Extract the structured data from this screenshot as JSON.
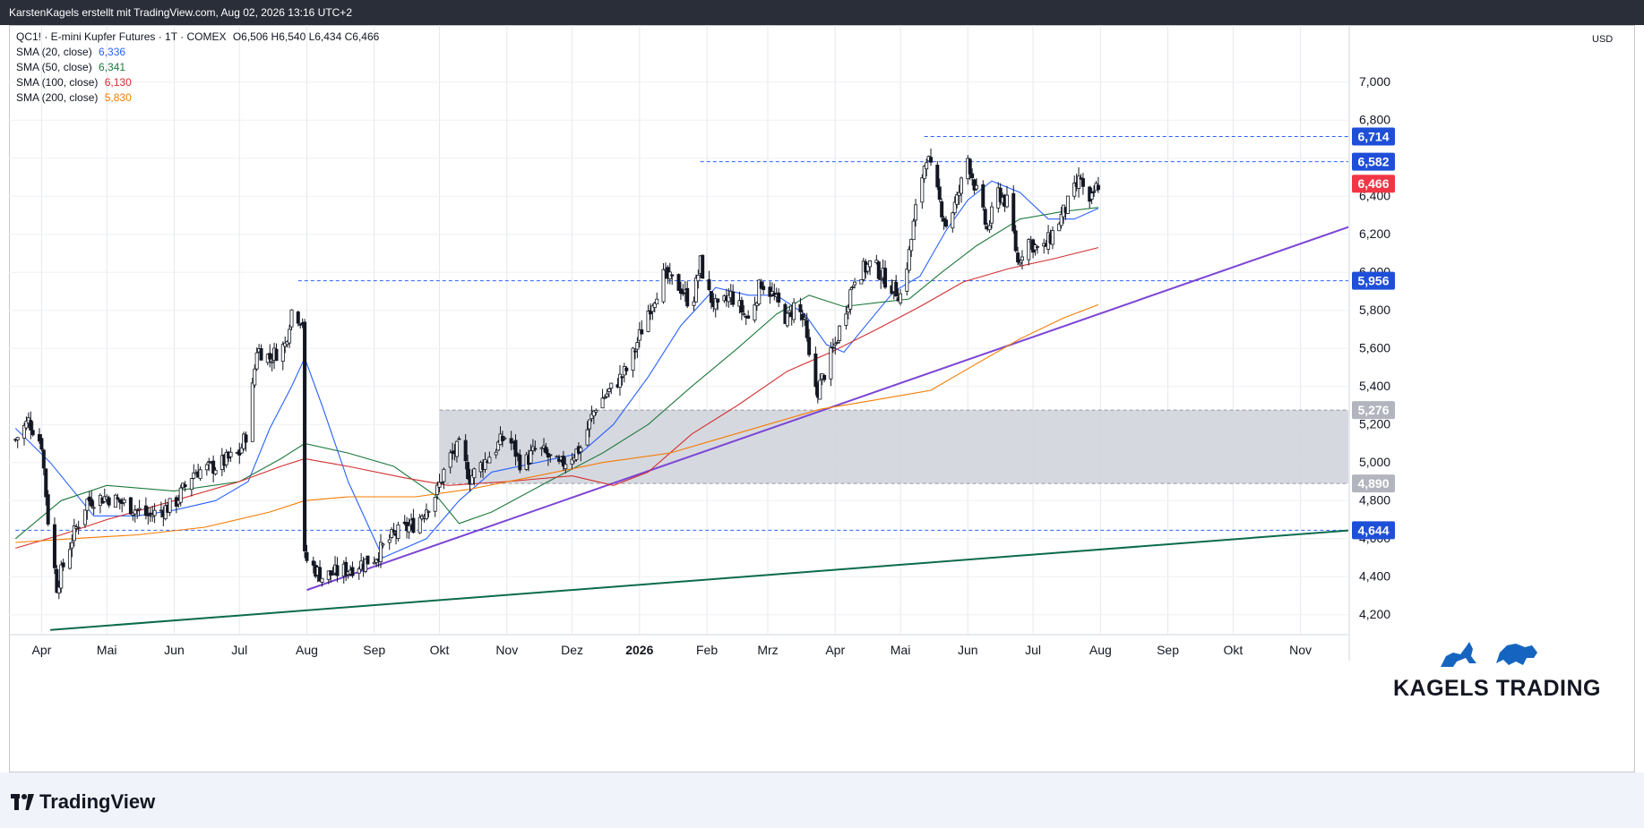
{
  "header": {
    "text": "KarstenKagels erstellt mit TradingView.com, Aug 02, 2026 13:16 UTC+2"
  },
  "legend": {
    "symbol": "QC1! · E-mini Kupfer Futures · 1T · COMEX",
    "ohlc": "O6,506  H6,540  L6,434  C6,466",
    "indicators": [
      {
        "label": "SMA (20, close)",
        "value": "6,336",
        "color": "#2962ff"
      },
      {
        "label": "SMA (50, close)",
        "value": "6,341",
        "color": "#1e7a3c"
      },
      {
        "label": "SMA (100, close)",
        "value": "6,130",
        "color": "#d32f2f"
      },
      {
        "label": "SMA (200, close)",
        "value": "5,830",
        "color": "#f57c00"
      }
    ]
  },
  "brand": {
    "tradingview": "TradingView",
    "kagels": "KAGELS TRADING"
  },
  "colors": {
    "up": "#ffffff",
    "down": "#131722",
    "trend_purple": "#7b45d6",
    "trend_green": "#0b6b4a",
    "level": "#2962ff",
    "zone": "#d1d4dc",
    "last_price": "#f23645"
  },
  "chart_data": {
    "type": "candlestick",
    "currency": "USD",
    "ylim": [
      4.1,
      7.3
    ],
    "y_ticks": [
      "4,200",
      "4,400",
      "4,600",
      "4,800",
      "5,000",
      "5,200",
      "5,400",
      "5,600",
      "5,800",
      "6,000",
      "6,200",
      "6,400",
      "6,600",
      "6,800",
      "7,000"
    ],
    "x_labels": [
      {
        "label": "Apr",
        "date": "2025-04-01"
      },
      {
        "label": "Mai",
        "date": "2025-05-01"
      },
      {
        "label": "Jun",
        "date": "2025-06-01"
      },
      {
        "label": "Jul",
        "date": "2025-07-01"
      },
      {
        "label": "Aug",
        "date": "2025-08-01"
      },
      {
        "label": "Sep",
        "date": "2025-09-01"
      },
      {
        "label": "Okt",
        "date": "2025-10-01"
      },
      {
        "label": "Nov",
        "date": "2025-11-01"
      },
      {
        "label": "Dez",
        "date": "2025-12-01"
      },
      {
        "label": "2026",
        "date": "2026-01-01"
      },
      {
        "label": "Feb",
        "date": "2026-02-01"
      },
      {
        "label": "Mrz",
        "date": "2026-03-01"
      },
      {
        "label": "Apr",
        "date": "2026-04-01"
      },
      {
        "label": "Mai",
        "date": "2026-05-01"
      },
      {
        "label": "Jun",
        "date": "2026-06-01"
      },
      {
        "label": "Jul",
        "date": "2026-07-01"
      },
      {
        "label": "Aug",
        "date": "2026-08-01"
      },
      {
        "label": "Sep",
        "date": "2026-09-01"
      },
      {
        "label": "Okt",
        "date": "2026-10-01"
      },
      {
        "label": "Nov",
        "date": "2026-11-01"
      }
    ],
    "price_path": [
      [
        "2025-03-20",
        5.12
      ],
      [
        "2025-03-26",
        5.22
      ],
      [
        "2025-04-01",
        5.1
      ],
      [
        "2025-04-04",
        4.7
      ],
      [
        "2025-04-08",
        4.35
      ],
      [
        "2025-04-15",
        4.6
      ],
      [
        "2025-04-22",
        4.8
      ],
      [
        "2025-05-01",
        4.82
      ],
      [
        "2025-05-10",
        4.78
      ],
      [
        "2025-05-20",
        4.72
      ],
      [
        "2025-06-01",
        4.78
      ],
      [
        "2025-06-10",
        4.95
      ],
      [
        "2025-06-20",
        4.98
      ],
      [
        "2025-07-01",
        5.05
      ],
      [
        "2025-07-05",
        5.18
      ],
      [
        "2025-07-09",
        5.6
      ],
      [
        "2025-07-15",
        5.55
      ],
      [
        "2025-07-22",
        5.62
      ],
      [
        "2025-07-25",
        5.8
      ],
      [
        "2025-07-30",
        5.75
      ],
      [
        "2025-07-31",
        4.5
      ],
      [
        "2025-08-08",
        4.4
      ],
      [
        "2025-08-20",
        4.44
      ],
      [
        "2025-09-01",
        4.5
      ],
      [
        "2025-09-10",
        4.62
      ],
      [
        "2025-09-20",
        4.68
      ],
      [
        "2025-09-30",
        4.85
      ],
      [
        "2025-10-05",
        5.02
      ],
      [
        "2025-10-10",
        5.08
      ],
      [
        "2025-10-15",
        4.92
      ],
      [
        "2025-10-25",
        5.05
      ],
      [
        "2025-11-01",
        5.15
      ],
      [
        "2025-11-08",
        4.98
      ],
      [
        "2025-11-15",
        5.08
      ],
      [
        "2025-11-25",
        4.98
      ],
      [
        "2025-12-05",
        5.08
      ],
      [
        "2025-12-12",
        5.3
      ],
      [
        "2025-12-20",
        5.4
      ],
      [
        "2025-12-27",
        5.5
      ],
      [
        "2026-01-05",
        5.8
      ],
      [
        "2026-01-12",
        5.98
      ],
      [
        "2026-01-20",
        5.92
      ],
      [
        "2026-01-25",
        5.82
      ],
      [
        "2026-01-29",
        6.05
      ],
      [
        "2026-02-01",
        5.9
      ],
      [
        "2026-02-06",
        5.8
      ],
      [
        "2026-02-12",
        5.88
      ],
      [
        "2026-02-20",
        5.75
      ],
      [
        "2026-02-26",
        5.95
      ],
      [
        "2026-03-02",
        5.9
      ],
      [
        "2026-03-10",
        5.75
      ],
      [
        "2026-03-14",
        5.85
      ],
      [
        "2026-03-18",
        5.72
      ],
      [
        "2026-03-21",
        5.45
      ],
      [
        "2026-03-24",
        5.38
      ],
      [
        "2026-04-01",
        5.62
      ],
      [
        "2026-04-05",
        5.78
      ],
      [
        "2026-04-10",
        5.98
      ],
      [
        "2026-04-18",
        6.05
      ],
      [
        "2026-04-25",
        5.95
      ],
      [
        "2026-05-01",
        5.88
      ],
      [
        "2026-05-05",
        6.1
      ],
      [
        "2026-05-09",
        6.4
      ],
      [
        "2026-05-13",
        6.62
      ],
      [
        "2026-05-17",
        6.45
      ],
      [
        "2026-05-22",
        6.25
      ],
      [
        "2026-05-27",
        6.38
      ],
      [
        "2026-06-01",
        6.6
      ],
      [
        "2026-06-05",
        6.42
      ],
      [
        "2026-06-10",
        6.22
      ],
      [
        "2026-06-15",
        6.42
      ],
      [
        "2026-06-20",
        6.35
      ],
      [
        "2026-06-24",
        6.05
      ],
      [
        "2026-06-28",
        6.18
      ],
      [
        "2026-07-05",
        6.1
      ],
      [
        "2026-07-12",
        6.25
      ],
      [
        "2026-07-18",
        6.38
      ],
      [
        "2026-07-23",
        6.5
      ],
      [
        "2026-07-26",
        6.3
      ],
      [
        "2026-07-29",
        6.42
      ],
      [
        "2026-07-31",
        6.466
      ]
    ],
    "sma": [
      {
        "name": "SMA (20, close)",
        "color": "#2962ff",
        "points": [
          [
            "2025-03-20",
            5.18
          ],
          [
            "2025-04-05",
            5.0
          ],
          [
            "2025-04-25",
            4.72
          ],
          [
            "2025-05-15",
            4.72
          ],
          [
            "2025-06-01",
            4.75
          ],
          [
            "2025-06-20",
            4.8
          ],
          [
            "2025-07-05",
            4.9
          ],
          [
            "2025-07-15",
            5.18
          ],
          [
            "2025-07-25",
            5.4
          ],
          [
            "2025-07-31",
            5.55
          ],
          [
            "2025-08-08",
            5.3
          ],
          [
            "2025-08-20",
            4.9
          ],
          [
            "2025-09-05",
            4.5
          ],
          [
            "2025-09-25",
            4.6
          ],
          [
            "2025-10-10",
            4.8
          ],
          [
            "2025-10-25",
            4.95
          ],
          [
            "2025-11-15",
            5.0
          ],
          [
            "2025-12-05",
            5.05
          ],
          [
            "2025-12-20",
            5.2
          ],
          [
            "2026-01-05",
            5.45
          ],
          [
            "2026-01-20",
            5.72
          ],
          [
            "2026-02-05",
            5.92
          ],
          [
            "2026-02-20",
            5.88
          ],
          [
            "2026-03-05",
            5.88
          ],
          [
            "2026-03-18",
            5.78
          ],
          [
            "2026-03-28",
            5.62
          ],
          [
            "2026-04-05",
            5.58
          ],
          [
            "2026-04-15",
            5.72
          ],
          [
            "2026-04-28",
            5.9
          ],
          [
            "2026-05-10",
            5.98
          ],
          [
            "2026-05-22",
            6.22
          ],
          [
            "2026-06-01",
            6.38
          ],
          [
            "2026-06-12",
            6.48
          ],
          [
            "2026-06-25",
            6.42
          ],
          [
            "2026-07-08",
            6.28
          ],
          [
            "2026-07-20",
            6.28
          ],
          [
            "2026-07-31",
            6.336
          ]
        ]
      },
      {
        "name": "SMA (50, close)",
        "color": "#1e7a3c",
        "points": [
          [
            "2025-03-20",
            4.6
          ],
          [
            "2025-04-10",
            4.8
          ],
          [
            "2025-05-01",
            4.88
          ],
          [
            "2025-06-01",
            4.85
          ],
          [
            "2025-07-01",
            4.9
          ],
          [
            "2025-07-20",
            5.02
          ],
          [
            "2025-07-31",
            5.1
          ],
          [
            "2025-08-20",
            5.05
          ],
          [
            "2025-09-10",
            4.98
          ],
          [
            "2025-09-30",
            4.82
          ],
          [
            "2025-10-10",
            4.68
          ],
          [
            "2025-10-25",
            4.74
          ],
          [
            "2025-11-20",
            4.9
          ],
          [
            "2025-12-15",
            5.05
          ],
          [
            "2026-01-05",
            5.2
          ],
          [
            "2026-01-25",
            5.4
          ],
          [
            "2026-02-15",
            5.6
          ],
          [
            "2026-03-05",
            5.78
          ],
          [
            "2026-03-20",
            5.88
          ],
          [
            "2026-04-05",
            5.82
          ],
          [
            "2026-04-20",
            5.84
          ],
          [
            "2026-05-05",
            5.86
          ],
          [
            "2026-05-20",
            6.0
          ],
          [
            "2026-06-05",
            6.14
          ],
          [
            "2026-06-25",
            6.28
          ],
          [
            "2026-07-15",
            6.32
          ],
          [
            "2026-07-31",
            6.341
          ]
        ]
      },
      {
        "name": "SMA (100, close)",
        "color": "#d32f2f",
        "points": [
          [
            "2025-03-20",
            4.55
          ],
          [
            "2025-04-10",
            4.62
          ],
          [
            "2025-05-01",
            4.7
          ],
          [
            "2025-06-01",
            4.8
          ],
          [
            "2025-07-01",
            4.9
          ],
          [
            "2025-07-20",
            4.98
          ],
          [
            "2025-07-31",
            5.02
          ],
          [
            "2025-08-20",
            4.98
          ],
          [
            "2025-09-15",
            4.92
          ],
          [
            "2025-10-05",
            4.88
          ],
          [
            "2025-11-01",
            4.9
          ],
          [
            "2025-12-01",
            4.93
          ],
          [
            "2025-12-20",
            4.88
          ],
          [
            "2026-01-05",
            4.95
          ],
          [
            "2026-01-25",
            5.15
          ],
          [
            "2026-02-15",
            5.3
          ],
          [
            "2026-03-10",
            5.48
          ],
          [
            "2026-03-30",
            5.58
          ],
          [
            "2026-04-20",
            5.7
          ],
          [
            "2026-05-10",
            5.82
          ],
          [
            "2026-05-30",
            5.95
          ],
          [
            "2026-06-20",
            6.02
          ],
          [
            "2026-07-10",
            6.07
          ],
          [
            "2026-07-31",
            6.13
          ]
        ]
      },
      {
        "name": "SMA (200, close)",
        "color": "#f57c00",
        "points": [
          [
            "2025-03-20",
            4.58
          ],
          [
            "2025-04-15",
            4.6
          ],
          [
            "2025-05-15",
            4.62
          ],
          [
            "2025-06-15",
            4.66
          ],
          [
            "2025-07-15",
            4.74
          ],
          [
            "2025-07-31",
            4.8
          ],
          [
            "2025-08-20",
            4.82
          ],
          [
            "2025-09-20",
            4.82
          ],
          [
            "2025-10-15",
            4.86
          ],
          [
            "2025-11-15",
            4.93
          ],
          [
            "2025-12-15",
            5.0
          ],
          [
            "2026-01-15",
            5.05
          ],
          [
            "2026-02-05",
            5.12
          ],
          [
            "2026-03-01",
            5.2
          ],
          [
            "2026-03-25",
            5.28
          ],
          [
            "2026-04-20",
            5.33
          ],
          [
            "2026-05-15",
            5.38
          ],
          [
            "2026-06-05",
            5.52
          ],
          [
            "2026-06-25",
            5.65
          ],
          [
            "2026-07-15",
            5.76
          ],
          [
            "2026-07-31",
            5.83
          ]
        ]
      }
    ],
    "trendlines": [
      {
        "color": "#7b45d6",
        "from": [
          "2025-08-01",
          4.33
        ],
        "to": [
          "2026-12-01",
          6.27
        ]
      },
      {
        "color": "#0b6b4a",
        "from": [
          "2025-04-05",
          4.12
        ],
        "to": [
          "2026-12-01",
          4.65
        ]
      }
    ],
    "levels": [
      {
        "label": "6,714",
        "value": 6.714,
        "from": "2026-05-12",
        "kind": "blue"
      },
      {
        "label": "6,582",
        "value": 6.582,
        "from": "2026-01-29",
        "kind": "blue"
      },
      {
        "label": "5,956",
        "value": 5.956,
        "from": "2025-07-28",
        "kind": "blue"
      },
      {
        "label": "4,644",
        "value": 4.644,
        "from": "2025-03-20",
        "kind": "blue"
      },
      {
        "label": "5,276",
        "value": 5.276,
        "from": "2025-10-01",
        "kind": "gray"
      },
      {
        "label": "4,890",
        "value": 4.89,
        "from": "2025-10-01",
        "kind": "gray"
      }
    ],
    "zone": {
      "from": "2025-10-01",
      "low": 4.89,
      "high": 5.276
    },
    "last_price": {
      "label": "6,466",
      "value": 6.466
    }
  }
}
